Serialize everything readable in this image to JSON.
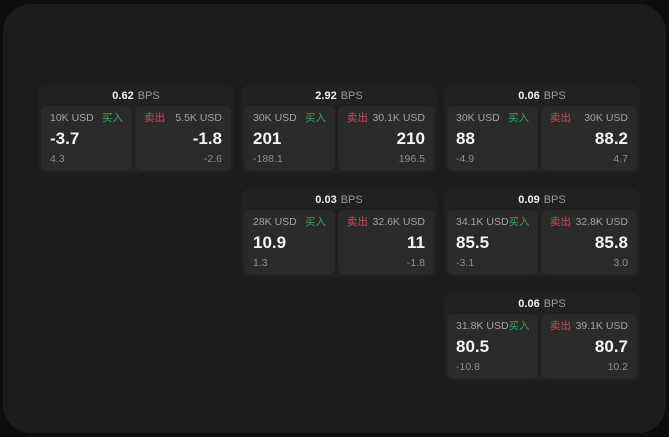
{
  "labels": {
    "buy": "买入",
    "sell": "卖出",
    "bps_unit": "BPS"
  },
  "colors": {
    "buy": "#42a05c",
    "sell": "#c84c5d",
    "panel_bg": "#1c1c1c",
    "card_bg": "#212121",
    "tile_bg": "#2a2a2a",
    "primary_text": "#f5f5f5",
    "secondary_text": "#a3a3a3"
  },
  "cards": [
    {
      "col": 0,
      "row": 0,
      "bps": "0.62",
      "buy": {
        "size": "10K USD",
        "value": "-3.7",
        "sub": "4.3"
      },
      "sell": {
        "size": "5.5K USD",
        "value": "-1.8",
        "sub": "-2.6"
      }
    },
    {
      "col": 1,
      "row": 0,
      "bps": "2.92",
      "buy": {
        "size": "30K USD",
        "value": "201",
        "sub": "-188.1"
      },
      "sell": {
        "size": "30.1K USD",
        "value": "210",
        "sub": "196.5"
      }
    },
    {
      "col": 2,
      "row": 0,
      "bps": "0.06",
      "buy": {
        "size": "30K USD",
        "value": "88",
        "sub": "-4.9"
      },
      "sell": {
        "size": "30K USD",
        "value": "88.2",
        "sub": "4.7"
      }
    },
    {
      "col": 1,
      "row": 1,
      "bps": "0.03",
      "buy": {
        "size": "28K USD",
        "value": "10.9",
        "sub": "1.3"
      },
      "sell": {
        "size": "32.6K USD",
        "value": "11",
        "sub": "-1.8"
      }
    },
    {
      "col": 2,
      "row": 1,
      "bps": "0.09",
      "buy": {
        "size": "34.1K USD",
        "value": "85.5",
        "sub": "-3.1"
      },
      "sell": {
        "size": "32.8K USD",
        "value": "85.8",
        "sub": "3.0"
      }
    },
    {
      "col": 2,
      "row": 2,
      "bps": "0.06",
      "buy": {
        "size": "31.8K USD",
        "value": "80.5",
        "sub": "-10.8"
      },
      "sell": {
        "size": "39.1K USD",
        "value": "80.7",
        "sub": "10.2"
      }
    }
  ]
}
